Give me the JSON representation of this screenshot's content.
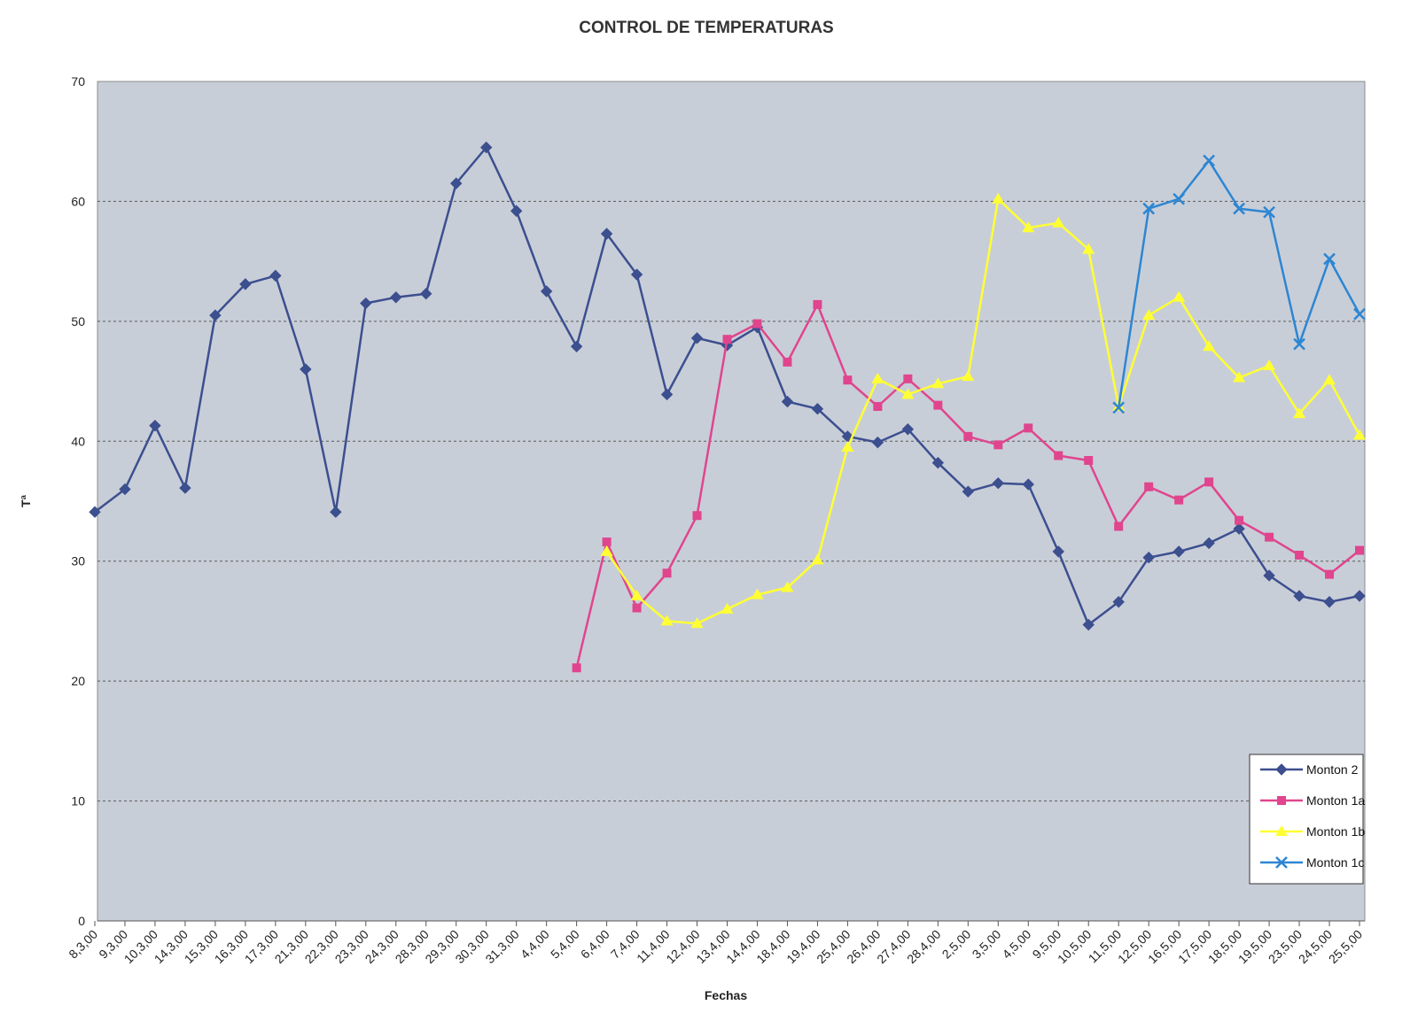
{
  "chart_data": {
    "type": "line",
    "title": "CONTROL DE TEMPERATURAS",
    "xlabel": "Fechas",
    "ylabel": "Tª",
    "ylim": [
      0,
      70
    ],
    "yticks": [
      "0",
      "10",
      "20",
      "30",
      "40",
      "50",
      "60",
      "70"
    ],
    "grid": "horizontal dashed",
    "legend_position": "bottom-right",
    "plot_background": "#c8ced8",
    "categories": [
      "8,3,00",
      "9,3,00",
      "10,3,00",
      "14,3,00",
      "15,3,00",
      "16,3,00",
      "17,3,00",
      "21,3,00",
      "22,3,00",
      "23,3,00",
      "24,3,00",
      "28,3,00",
      "29,3,00",
      "30,3,00",
      "31,3,00",
      "4,4,00",
      "5,4,00",
      "6,4,00",
      "7,4,00",
      "11,4,00",
      "12,4,00",
      "13,4,00",
      "14,4,00",
      "18,4,00",
      "19,4,00",
      "25,4,00",
      "26,4,00",
      "27,4,00",
      "28,4,00",
      "2,5,00",
      "3,5,00",
      "4,5,00",
      "9,5,00",
      "10,5,00",
      "11,5,00",
      "12,5,00",
      "16,5,00",
      "17,5,00",
      "18,5,00",
      "19,5,00",
      "23,5,00",
      "24,5,00",
      "25,5,00"
    ],
    "series": [
      {
        "name": "Monton 2",
        "color": "#3c4f8f",
        "marker": "diamond",
        "values": [
          34.1,
          36.0,
          41.3,
          36.1,
          50.5,
          53.1,
          53.8,
          46.0,
          34.1,
          51.5,
          52.0,
          52.3,
          61.5,
          64.5,
          59.2,
          52.5,
          47.9,
          57.3,
          53.9,
          43.9,
          48.6,
          48.0,
          49.5,
          43.3,
          42.7,
          40.4,
          39.9,
          41.0,
          38.2,
          35.8,
          36.5,
          36.4,
          30.8,
          24.7,
          26.6,
          30.3,
          30.8,
          31.5,
          32.7,
          28.8,
          27.1,
          26.6,
          27.1
        ]
      },
      {
        "name": "Monton 1a",
        "color": "#e0458e",
        "marker": "square",
        "values": [
          null,
          null,
          null,
          null,
          null,
          null,
          null,
          null,
          null,
          null,
          null,
          null,
          null,
          null,
          null,
          null,
          21.1,
          31.6,
          26.1,
          29.0,
          33.8,
          48.5,
          49.8,
          46.6,
          51.4,
          45.1,
          42.9,
          45.2,
          43.0,
          40.4,
          39.7,
          41.1,
          38.8,
          38.4,
          32.9,
          36.2,
          35.1,
          36.6,
          33.4,
          32.0,
          30.5,
          28.9,
          30.9
        ]
      },
      {
        "name": "Monton 1b",
        "color": "#ffff33",
        "marker": "triangle",
        "values": [
          null,
          null,
          null,
          null,
          null,
          null,
          null,
          null,
          null,
          null,
          null,
          null,
          null,
          null,
          null,
          null,
          null,
          30.8,
          27.1,
          25.0,
          24.8,
          26.0,
          27.2,
          27.8,
          30.1,
          39.5,
          45.2,
          43.9,
          44.8,
          45.4,
          60.2,
          57.8,
          58.2,
          56.0,
          42.9,
          50.5,
          52.0,
          47.9,
          45.3,
          46.3,
          42.3,
          45.1,
          40.5
        ]
      },
      {
        "name": "Monton 1c",
        "color": "#2d86d2",
        "marker": "x",
        "values": [
          null,
          null,
          null,
          null,
          null,
          null,
          null,
          null,
          null,
          null,
          null,
          null,
          null,
          null,
          null,
          null,
          null,
          null,
          null,
          null,
          null,
          null,
          null,
          null,
          null,
          null,
          null,
          null,
          null,
          null,
          null,
          null,
          null,
          null,
          42.8,
          59.4,
          60.2,
          63.4,
          59.4,
          59.1,
          48.1,
          55.2,
          50.6
        ]
      }
    ]
  }
}
